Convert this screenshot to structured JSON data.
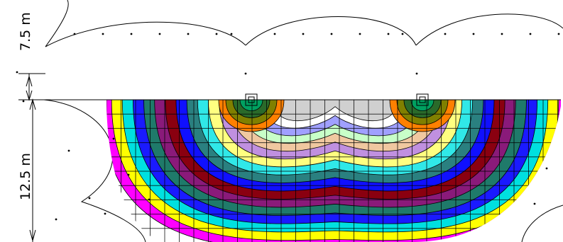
{
  "dimensions": {
    "top_label": "7.5 m",
    "main_label": "12.5 m"
  },
  "plot": {
    "contour_colors": [
      "#ff00ff",
      "#ffff00",
      "#00e0e0",
      "#1a1aff",
      "#1f7a6a",
      "#8a1a7a",
      "#8a0010",
      "#1010ff",
      "#2a8080",
      "#30e8e8",
      "#ffff80",
      "#c090e0",
      "#f0c8a0",
      "#c8ffc8",
      "#a0a0ff",
      "#ffffff",
      "#d0d0d0"
    ],
    "column_marker_colors": [
      "#ff8000",
      "#808000",
      "#2a6a2a",
      "#00a060"
    ]
  }
}
